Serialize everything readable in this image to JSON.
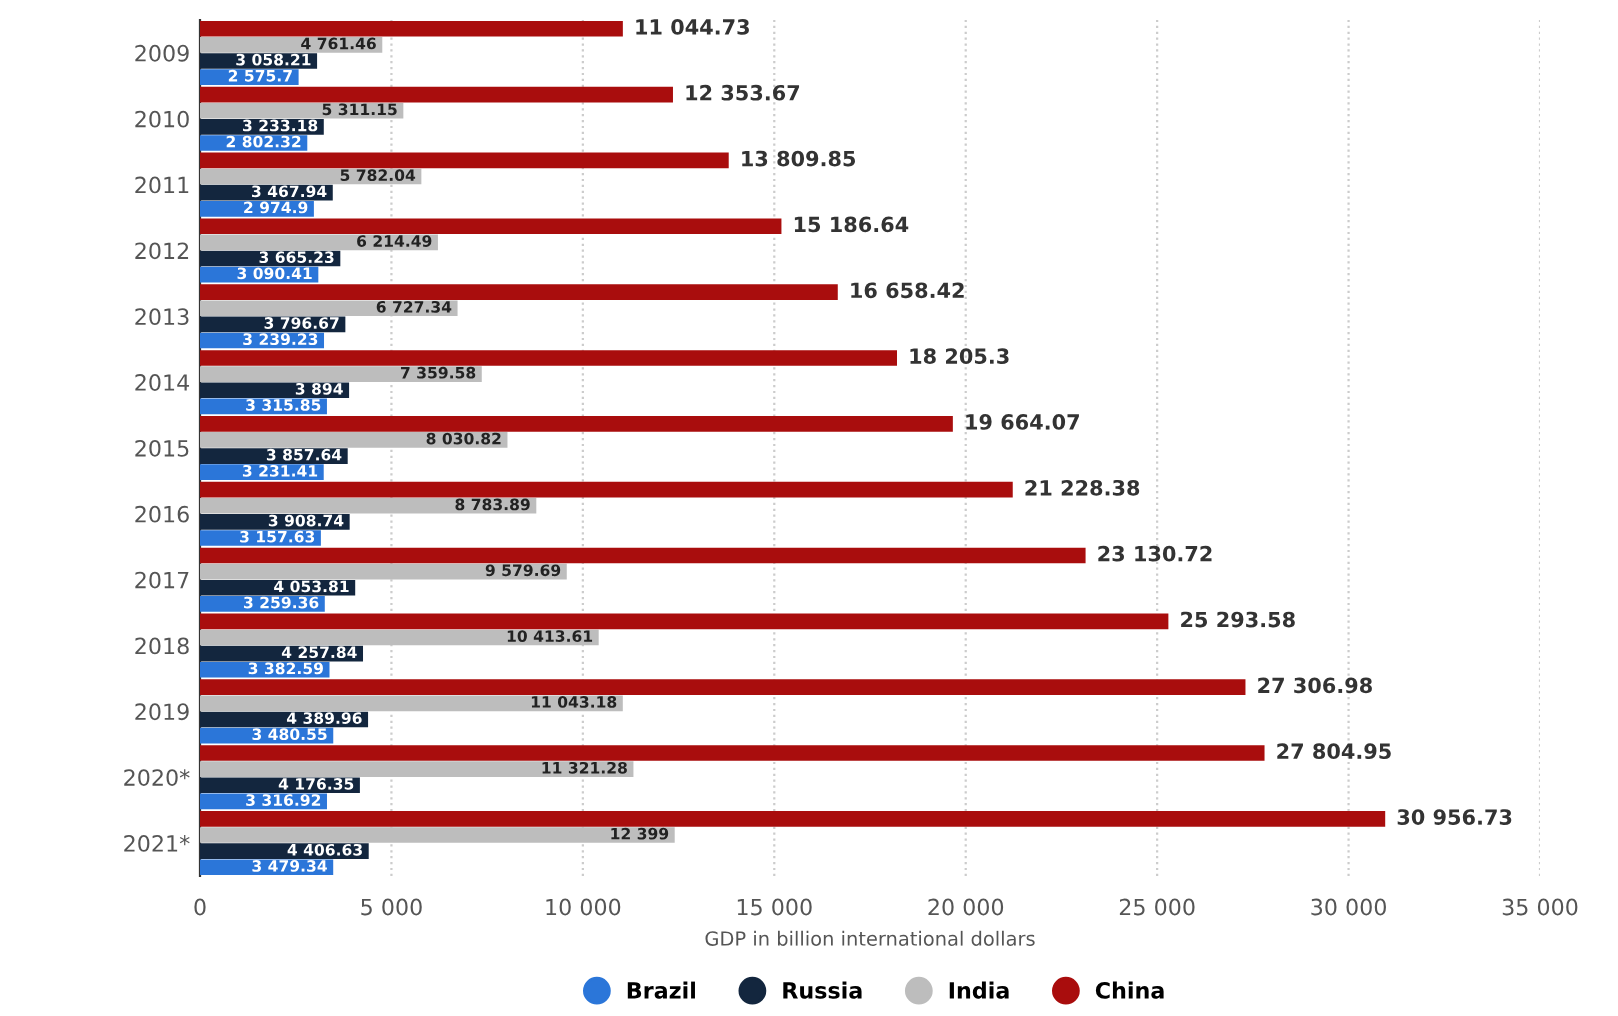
{
  "chart_data": {
    "type": "bar",
    "orientation": "horizontal",
    "xlabel": "GDP in billion international dollars",
    "categories": [
      "2009",
      "2010",
      "2011",
      "2012",
      "2013",
      "2014",
      "2015",
      "2016",
      "2017",
      "2018",
      "2019",
      "2020*",
      "2021*"
    ],
    "series": [
      {
        "name": "Brazil",
        "color": "#2b76d9",
        "values": [
          2575.7,
          2802.32,
          2974.9,
          3090.41,
          3239.23,
          3315.85,
          3231.41,
          3157.63,
          3259.36,
          3382.59,
          3480.55,
          3316.92,
          3479.34
        ],
        "value_labels": [
          "2 575.7",
          "2 802.32",
          "2 974.9",
          "3 090.41",
          "3 239.23",
          "3 315.85",
          "3 231.41",
          "3 157.63",
          "3 259.36",
          "3 382.59",
          "3 480.55",
          "3 316.92",
          "3 479.34"
        ]
      },
      {
        "name": "Russia",
        "color": "#13263e",
        "values": [
          3058.21,
          3233.18,
          3467.94,
          3665.23,
          3796.67,
          3894,
          3857.64,
          3908.74,
          4053.81,
          4257.84,
          4389.96,
          4176.35,
          4406.63
        ],
        "value_labels": [
          "3 058.21",
          "3 233.18",
          "3 467.94",
          "3 665.23",
          "3 796.67",
          "3 894",
          "3 857.64",
          "3 908.74",
          "4 053.81",
          "4 257.84",
          "4 389.96",
          "4 176.35",
          "4 406.63"
        ]
      },
      {
        "name": "India",
        "color": "#bdbdbd",
        "values": [
          4761.46,
          5311.15,
          5782.04,
          6214.49,
          6727.34,
          7359.58,
          8030.82,
          8783.89,
          9579.69,
          10413.61,
          11043.18,
          11321.28,
          12399
        ],
        "value_labels": [
          "4 761.46",
          "5 311.15",
          "5 782.04",
          "6 214.49",
          "6 727.34",
          "7 359.58",
          "8 030.82",
          "8 783.89",
          "9 579.69",
          "10 413.61",
          "11 043.18",
          "11 321.28",
          "12 399"
        ]
      },
      {
        "name": "China",
        "color": "#a90d0d",
        "values": [
          11044.73,
          12353.67,
          13809.85,
          15186.64,
          16658.42,
          18205.3,
          19664.07,
          21228.38,
          23130.72,
          25293.58,
          27306.98,
          27804.95,
          30956.73
        ],
        "value_labels": [
          "11 044.73",
          "12 353.67",
          "13 809.85",
          "15 186.64",
          "16 658.42",
          "18 205.3",
          "19 664.07",
          "21 228.38",
          "23 130.72",
          "25 293.58",
          "27 306.98",
          "27 804.95",
          "30 956.73"
        ]
      }
    ],
    "xlim": [
      0,
      35000
    ],
    "xticks": [
      0,
      {
        "value": 5000,
        "label": "5 000"
      },
      {
        "value": 10000,
        "label": "10 000"
      },
      {
        "value": 15000,
        "label": "15 000"
      },
      {
        "value": 20000,
        "label": "20 000"
      },
      {
        "value": 25000,
        "label": "25 000"
      },
      {
        "value": 30000,
        "label": "30 000"
      },
      {
        "value": 35000,
        "label": "35 000"
      }
    ],
    "grid": "x",
    "legend": "bottom",
    "marker": "circle"
  }
}
